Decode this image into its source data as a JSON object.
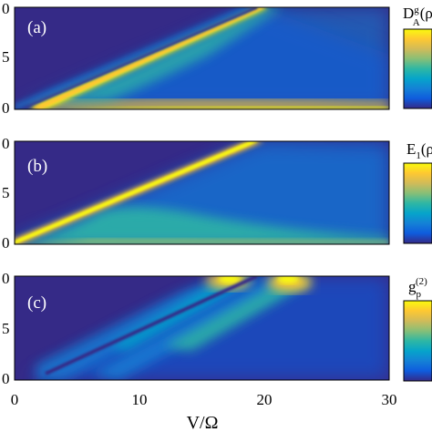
{
  "figure": {
    "xlabel": "V/Ω",
    "x_ticks": [
      "0",
      "10",
      "20",
      "30"
    ]
  },
  "chart_data": [
    {
      "type": "heatmap",
      "panel_label": "(a)",
      "colorbar_label_base": "D",
      "colorbar_label_sup": "g",
      "colorbar_label_sub": "A",
      "colorbar_label_tail": "(ρ",
      "xlim": [
        0,
        30
      ],
      "ylim": [
        0,
        10
      ],
      "y_ticks": [
        "0",
        "5",
        "0"
      ],
      "colormap": "parula",
      "features": [
        {
          "kind": "bright-band",
          "from": [
            1,
            0.7
          ],
          "to": [
            20,
            10
          ]
        },
        {
          "kind": "dark-line",
          "from": [
            1,
            0.5
          ],
          "to": [
            19.5,
            10
          ]
        },
        {
          "kind": "bright-floor",
          "x_range": [
            3,
            30
          ],
          "y": 0.2
        }
      ]
    },
    {
      "type": "heatmap",
      "panel_label": "(b)",
      "colorbar_label_base": "E",
      "colorbar_label_sub": "1",
      "colorbar_label_tail": "(ρ",
      "xlim": [
        0,
        30
      ],
      "ylim": [
        0,
        10
      ],
      "y_ticks": [
        "0",
        "5",
        "0"
      ],
      "colormap": "parula",
      "features": [
        {
          "kind": "bright-band",
          "from": [
            0,
            0.3
          ],
          "to": [
            20,
            10
          ]
        },
        {
          "kind": "bright-floor",
          "x_range": [
            0,
            30
          ],
          "y": 0.1
        }
      ]
    },
    {
      "type": "heatmap",
      "panel_label": "(c)",
      "colorbar_label_base": "g",
      "colorbar_label_sub": "p",
      "colorbar_label_sup": "(2)",
      "colorbar_label_tail": "",
      "xlim": [
        0,
        30
      ],
      "ylim": [
        0,
        10
      ],
      "y_ticks": [
        "0",
        "5",
        "0"
      ],
      "colormap": "parula",
      "features": [
        {
          "kind": "bright-band",
          "from": [
            2,
            1.5
          ],
          "to": [
            16,
            10
          ]
        },
        {
          "kind": "dark-line",
          "from": [
            3,
            1.2
          ],
          "to": [
            19.5,
            10
          ]
        },
        {
          "kind": "bright-band",
          "from": [
            6,
            1.0
          ],
          "to": [
            23,
            10
          ]
        }
      ]
    }
  ],
  "colors": {
    "parula": [
      "#352a87",
      "#0f5cdd",
      "#1481d6",
      "#06a4ca",
      "#2eb7a4",
      "#87bf77",
      "#d1bb59",
      "#fec832",
      "#f9fb0e"
    ]
  }
}
